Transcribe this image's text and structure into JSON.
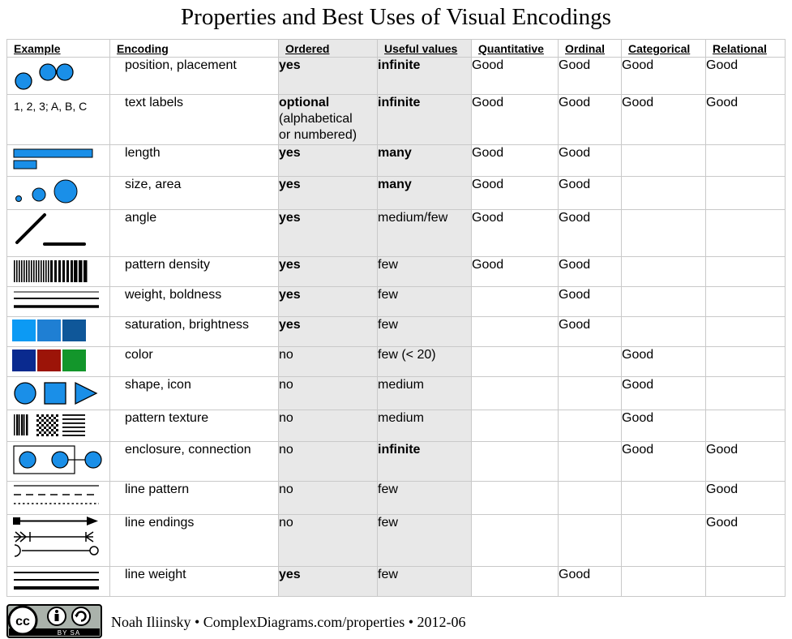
{
  "title": "Properties and Best Uses of Visual Encodings",
  "headers": [
    "Example",
    "Encoding",
    "Ordered",
    "Useful values",
    "Quantitative",
    "Ordinal",
    "Categorical",
    "Relational"
  ],
  "rows": [
    {
      "example_icon": "position-icon",
      "example_text": "",
      "encoding": "position, placement",
      "ordered": [
        "yes"
      ],
      "ordered_bold": true,
      "useful": "infinite",
      "useful_bold": true,
      "quantitative": "Good",
      "ordinal": "Good",
      "categorical": "Good",
      "relational": "Good"
    },
    {
      "example_icon": "text-labels-icon",
      "example_text": "1, 2, 3; A, B, C",
      "encoding": "text labels",
      "ordered": [
        "optional",
        "(alphabetical",
        "or numbered)"
      ],
      "ordered_bold": true,
      "useful": "infinite",
      "useful_bold": true,
      "quantitative": "Good",
      "ordinal": "Good",
      "categorical": "Good",
      "relational": "Good"
    },
    {
      "example_icon": "length-icon",
      "example_text": "",
      "encoding": "length",
      "ordered": [
        "yes"
      ],
      "ordered_bold": true,
      "useful": "many",
      "useful_bold": true,
      "quantitative": "Good",
      "ordinal": "Good",
      "categorical": "",
      "relational": ""
    },
    {
      "example_icon": "size-area-icon",
      "example_text": "",
      "encoding": "size, area",
      "ordered": [
        "yes"
      ],
      "ordered_bold": true,
      "useful": "many",
      "useful_bold": true,
      "quantitative": "Good",
      "ordinal": "Good",
      "categorical": "",
      "relational": ""
    },
    {
      "example_icon": "angle-icon",
      "example_text": "",
      "encoding": "angle",
      "ordered": [
        "yes"
      ],
      "ordered_bold": true,
      "useful": "medium/few",
      "useful_bold": false,
      "quantitative": "Good",
      "ordinal": "Good",
      "categorical": "",
      "relational": ""
    },
    {
      "example_icon": "pattern-density-icon",
      "example_text": "",
      "encoding": "pattern density",
      "ordered": [
        "yes"
      ],
      "ordered_bold": true,
      "useful": "few",
      "useful_bold": false,
      "quantitative": "Good",
      "ordinal": "Good",
      "categorical": "",
      "relational": ""
    },
    {
      "example_icon": "weight-boldness-icon",
      "example_text": "",
      "encoding": "weight, boldness",
      "ordered": [
        "yes"
      ],
      "ordered_bold": true,
      "useful": "few",
      "useful_bold": false,
      "quantitative": "",
      "ordinal": "Good",
      "categorical": "",
      "relational": ""
    },
    {
      "example_icon": "saturation-brightness-icon",
      "example_text": "",
      "encoding": "saturation, brightness",
      "ordered": [
        "yes"
      ],
      "ordered_bold": true,
      "useful": "few",
      "useful_bold": false,
      "quantitative": "",
      "ordinal": "Good",
      "categorical": "",
      "relational": ""
    },
    {
      "example_icon": "color-icon",
      "example_text": "",
      "encoding": "color",
      "ordered": [
        "no"
      ],
      "ordered_bold": false,
      "useful": "few (< 20)",
      "useful_bold": false,
      "quantitative": "",
      "ordinal": "",
      "categorical": "Good",
      "relational": ""
    },
    {
      "example_icon": "shape-icon",
      "example_text": "",
      "encoding": "shape, icon",
      "ordered": [
        "no"
      ],
      "ordered_bold": false,
      "useful": "medium",
      "useful_bold": false,
      "quantitative": "",
      "ordinal": "",
      "categorical": "Good",
      "relational": ""
    },
    {
      "example_icon": "pattern-texture-icon",
      "example_text": "",
      "encoding": "pattern texture",
      "ordered": [
        "no"
      ],
      "ordered_bold": false,
      "useful": "medium",
      "useful_bold": false,
      "quantitative": "",
      "ordinal": "",
      "categorical": "Good",
      "relational": ""
    },
    {
      "example_icon": "enclosure-connection-icon",
      "example_text": "",
      "encoding": "enclosure, connection",
      "ordered": [
        "no"
      ],
      "ordered_bold": false,
      "useful": "infinite",
      "useful_bold": true,
      "quantitative": "",
      "ordinal": "",
      "categorical": "Good",
      "relational": "Good"
    },
    {
      "example_icon": "line-pattern-icon",
      "example_text": "",
      "encoding": "line pattern",
      "ordered": [
        "no"
      ],
      "ordered_bold": false,
      "useful": "few",
      "useful_bold": false,
      "quantitative": "",
      "ordinal": "",
      "categorical": "",
      "relational": "Good"
    },
    {
      "example_icon": "line-endings-icon",
      "example_text": "",
      "encoding": "line endings",
      "ordered": [
        "no"
      ],
      "ordered_bold": false,
      "useful": "few",
      "useful_bold": false,
      "quantitative": "",
      "ordinal": "",
      "categorical": "",
      "relational": "Good"
    },
    {
      "example_icon": "line-weight-icon",
      "example_text": "",
      "encoding": "line weight",
      "ordered": [
        "yes"
      ],
      "ordered_bold": true,
      "useful": "few",
      "useful_bold": false,
      "quantitative": "",
      "ordinal": "Good",
      "categorical": "",
      "relational": ""
    }
  ],
  "colors": {
    "accent_blue": "#1a8fe8",
    "mid_blue": "#1f7fd3",
    "dark_blue": "#0f5799",
    "navy": "#0a2a8f",
    "dark_red": "#9c1408",
    "green": "#13962b",
    "shaded_column": "#e8e8e8",
    "grid": "#c9c9c9"
  },
  "footer": {
    "license_badge_text": "BY SA",
    "credit": "Noah Iliinsky • ComplexDiagrams.com/properties • 2012-06"
  }
}
